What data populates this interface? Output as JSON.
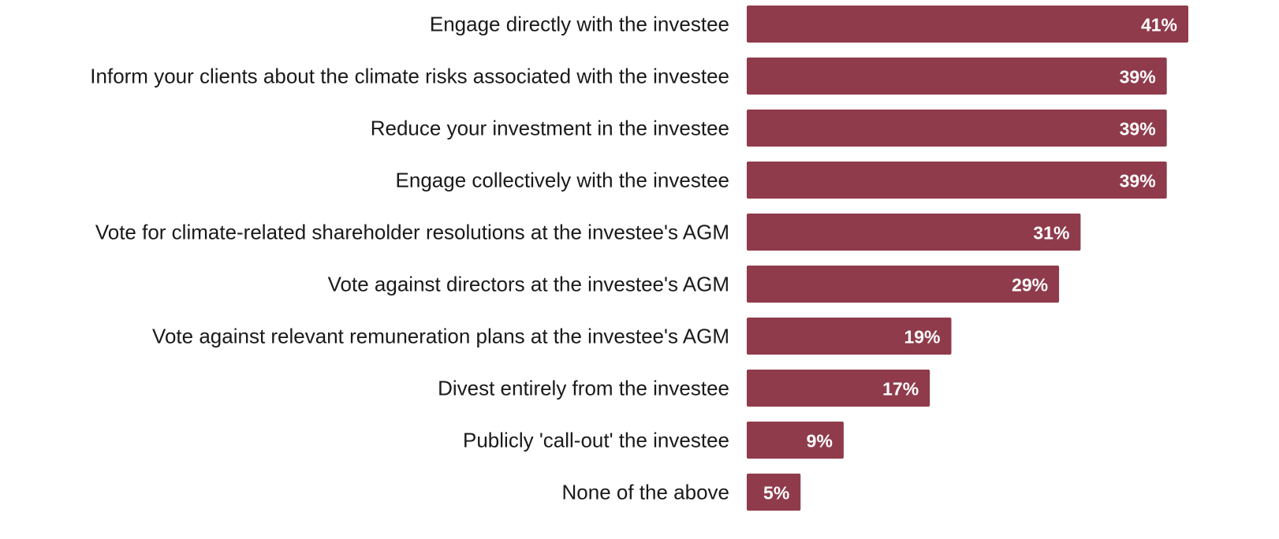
{
  "chart_data": {
    "type": "bar",
    "orientation": "horizontal",
    "title": "",
    "xlabel": "",
    "ylabel": "",
    "categories": [
      "Engage directly with the investee",
      "Inform your clients about the climate risks associated with the investee",
      "Reduce your investment in the investee",
      "Engage collectively with the investee",
      "Vote for climate-related shareholder resolutions at the investee's AGM",
      "Vote against directors at the investee's AGM",
      "Vote against relevant remuneration plans at the investee's AGM",
      "Divest entirely from the investee",
      "Publicly 'call-out' the investee",
      "None of the above"
    ],
    "values": [
      41,
      39,
      39,
      39,
      31,
      29,
      19,
      17,
      9,
      5
    ],
    "value_labels": [
      "41%",
      "39%",
      "39%",
      "39%",
      "31%",
      "29%",
      "19%",
      "17%",
      "9%",
      "5%"
    ],
    "unit": "%",
    "xlim": [
      0,
      41
    ],
    "grid": false,
    "legend": "none",
    "bar_color": "#8f3b4b",
    "label_color": "#1a1a1a",
    "value_label_color": "#ffffff"
  }
}
